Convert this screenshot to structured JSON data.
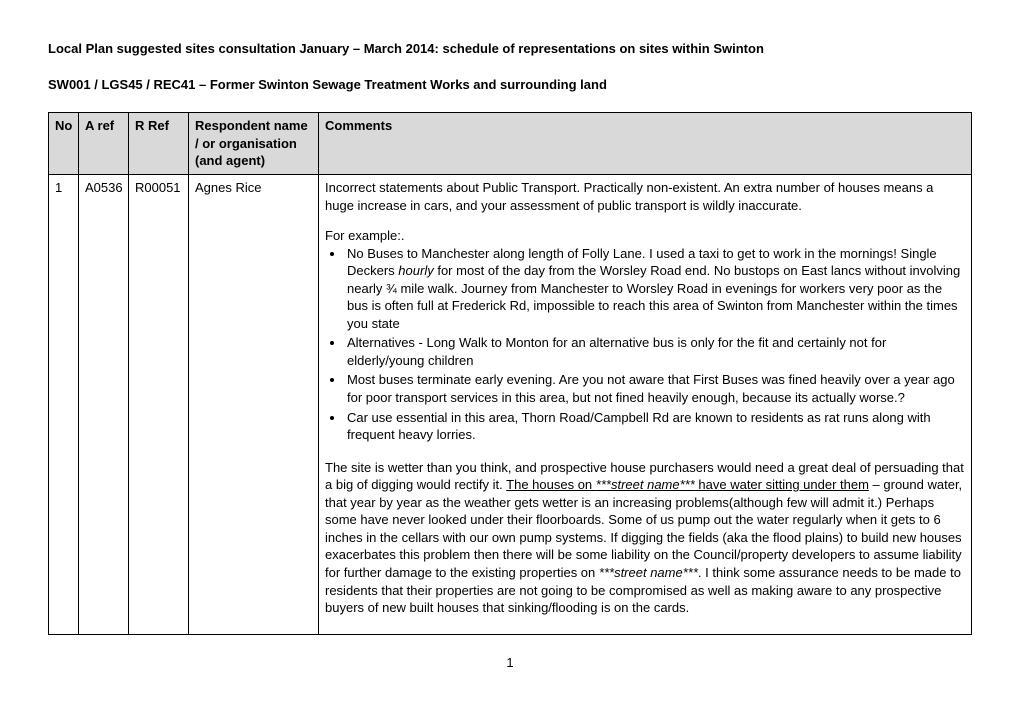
{
  "heading": "Local Plan suggested sites consultation January – March 2014: schedule of representations on sites within Swinton",
  "subheading": "SW001 / LGS45 / REC41 – Former Swinton Sewage Treatment Works and surrounding land",
  "columns": {
    "no": "No",
    "aref": "A ref",
    "rref": "R Ref",
    "name": "Respondent name / or organisation (and agent)",
    "comments": "Comments"
  },
  "row": {
    "no": "1",
    "aref": "A0536",
    "rref": "R00051",
    "name": "Agnes Rice",
    "intro": "Incorrect statements about Public Transport. Practically non-existent. An extra number of houses means a huge increase in cars, and your assessment of public transport is wildly inaccurate.",
    "for_example": "For example:.",
    "bullets": {
      "b1a": "No Buses to Manchester along length of Folly Lane. I used a taxi to get to work in the mornings! Single Deckers ",
      "b1_hourly": "hourly",
      "b1b": " for most of the day from the Worsley Road end. No bustops on East lancs without involving nearly ¾ mile walk.  Journey from Manchester to Worsley Road in evenings for workers very poor as  the bus is often full at Frederick Rd, impossible to reach this area of Swinton from Manchester within the times you state",
      "b2": "Alternatives - Long Walk to Monton for an alternative bus is only for the fit and certainly not for elderly/young children",
      "b3": "Most buses terminate early evening. Are you not aware that First Buses was fined heavily over a year ago for poor transport services in this area, but not fined heavily enough, because its actually worse.?",
      "b4": "Car use essential in this area, Thorn Road/Campbell Rd are known to residents as rat runs along with frequent heavy lorries."
    },
    "closing": {
      "c1": "The site is wetter than you think, and prospective house purchasers would need a great deal of persuading that a big of digging would rectify it",
      "c_dot": ". ",
      "c_u1a": "The houses on  ",
      "c_u1_sn": "***street name***",
      "c_u1b": " have water sitting under ",
      "c_u1c": "them",
      "c2": " – ground water, that year by year as the weather gets wetter is an increasing problems(although few will admit it.) Perhaps some have never looked under their floorboards. Some of us pump out the water regularly when it gets to 6 inches in the cellars with our own pump systems. If digging the fields (aka the flood plains) to build new houses exacerbates this problem then there will be some liability on the Council/property developers to assume liability for further damage to the existing properties on ",
      "c_sn2": "***street name***",
      "c3": ". I think some assurance needs to be made to residents that their properties are not going to be compromised as well as making aware to any prospective buyers of new built houses that sinking/flooding is on the cards."
    }
  },
  "page_number": "1"
}
